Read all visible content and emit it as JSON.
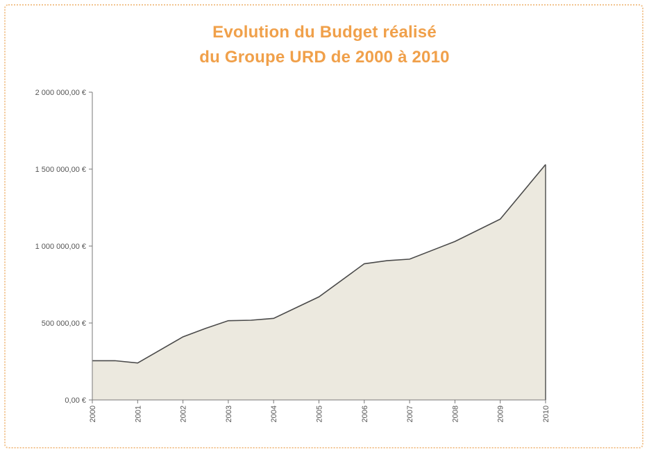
{
  "chart_data": {
    "type": "area",
    "title_line1": "Evolution du Budget réalisé",
    "title_line2": "du Groupe URD de 2000 à 2010",
    "x": [
      2000,
      2000.5,
      2001,
      2002,
      2002.5,
      2003,
      2003.5,
      2004,
      2005,
      2006,
      2006.5,
      2007,
      2008,
      2009,
      2010
    ],
    "x_tick_labels": [
      "2000",
      "2001",
      "2002",
      "2003",
      "2004",
      "2005",
      "2006",
      "2007",
      "2008",
      "2009",
      "2010"
    ],
    "values": [
      255000,
      255000,
      240000,
      410000,
      465000,
      515000,
      518000,
      530000,
      670000,
      885000,
      905000,
      915000,
      1030000,
      1175000,
      1530000
    ],
    "y_tick_values": [
      0,
      500000,
      1000000,
      1500000,
      2000000
    ],
    "y_tick_labels": [
      "0,00 €",
      "500 000,00 €",
      "1 000 000,00 €",
      "1 500 000,00 €",
      "2 000 000,00 €"
    ],
    "ylim": [
      0,
      2000000
    ],
    "grid": false,
    "legend": "none",
    "colors": {
      "title": "#f0a04a",
      "area_fill": "#ece9df",
      "line": "#4a4a4a",
      "axis": "#777777",
      "frame": "#f2c38f"
    }
  }
}
